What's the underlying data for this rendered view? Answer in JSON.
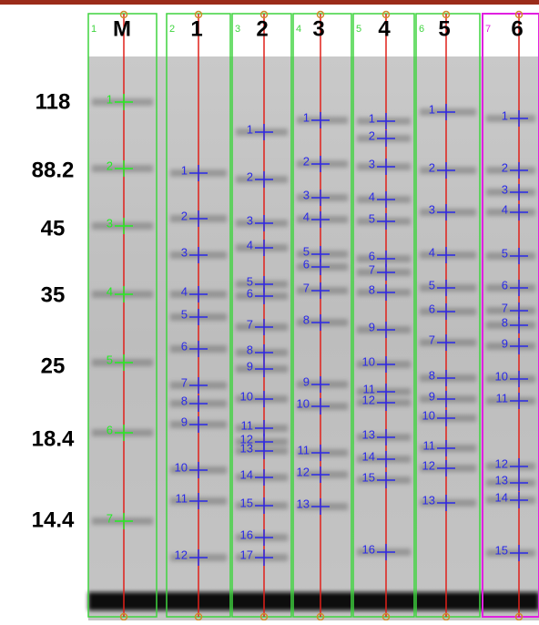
{
  "markers": [
    "118",
    "88.2",
    "45",
    "35",
    "25",
    "18.4",
    "14.4"
  ],
  "lanes": [
    {
      "index": "1",
      "title": "M",
      "bands": [
        1,
        2,
        3,
        4,
        5,
        6,
        7
      ]
    },
    {
      "index": "2",
      "title": "1",
      "bands": [
        1,
        2,
        3,
        4,
        5,
        6,
        7,
        8,
        9,
        10,
        11,
        12
      ]
    },
    {
      "index": "3",
      "title": "2",
      "bands": [
        1,
        2,
        3,
        4,
        5,
        6,
        7,
        8,
        9,
        10,
        11,
        12,
        13,
        14,
        15,
        16,
        17
      ]
    },
    {
      "index": "4",
      "title": "3",
      "bands": [
        1,
        2,
        3,
        4,
        5,
        6,
        7,
        8,
        9,
        10,
        11,
        12,
        13
      ]
    },
    {
      "index": "5",
      "title": "4",
      "bands": [
        1,
        2,
        3,
        4,
        5,
        6,
        7,
        8,
        9,
        10,
        11,
        12,
        13,
        14,
        15,
        16
      ]
    },
    {
      "index": "6",
      "title": "5",
      "bands": [
        1,
        2,
        3,
        4,
        5,
        6,
        7,
        8,
        9,
        10,
        11,
        12,
        13
      ]
    },
    {
      "index": "7",
      "title": "6",
      "bands": [
        1,
        2,
        3,
        4,
        5,
        6,
        7,
        8,
        9,
        10,
        11,
        12,
        13,
        14,
        15
      ]
    }
  ]
}
